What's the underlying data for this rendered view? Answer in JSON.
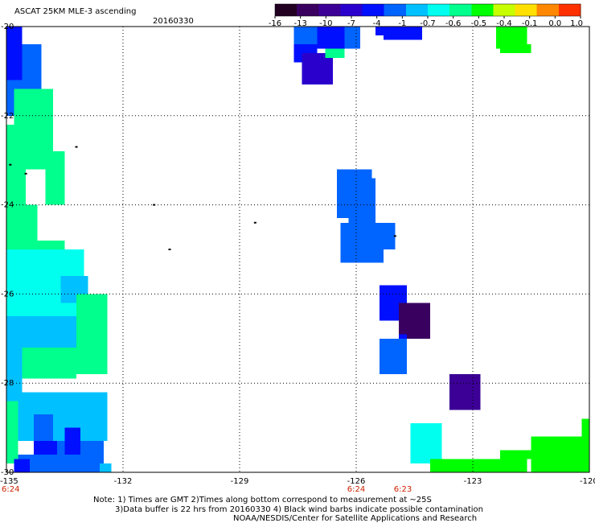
{
  "chart_data": {
    "type": "heatmap",
    "title": "ASCAT 25KM MLE-3 ascending",
    "date": "20160330",
    "xlim": [
      -135,
      -120
    ],
    "ylim": [
      -30,
      -20
    ],
    "x_tick_labels": [
      "-135",
      "-132",
      "-129",
      "-126",
      "-123",
      "-120"
    ],
    "y_tick_labels": [
      "-20",
      "-22",
      "-24",
      "-26",
      "-28",
      "-30"
    ],
    "time_labels": [
      {
        "lon": -135,
        "text": "6:24"
      },
      {
        "lon": -126,
        "text": "6:24"
      },
      {
        "lon": -124.8,
        "text": "6:23"
      }
    ],
    "colorbar": {
      "labels": [
        "-16",
        "-13",
        "-10",
        "-7",
        "-4",
        "-1",
        "-0.7",
        "-0.6",
        "-0.5",
        "-0.4",
        "-0.1",
        "0.0",
        "1.0"
      ],
      "colors": [
        "#220022",
        "#3a0060",
        "#3c0096",
        "#2a00cc",
        "#0010ff",
        "#0064ff",
        "#00c0ff",
        "#00ffee",
        "#00ff8c",
        "#00ff00",
        "#c8ff00",
        "#ffe000",
        "#ff8800",
        "#ff3000"
      ]
    },
    "grid": true,
    "cells": [
      {
        "lon0": -135,
        "lon1": -134.6,
        "lat0": -21.2,
        "lat1": -20,
        "level": 4
      },
      {
        "lon0": -134.6,
        "lon1": -134.1,
        "lat0": -21.0,
        "lat1": -20.4,
        "level": 5
      },
      {
        "lon0": -134.6,
        "lon1": -134.1,
        "lat0": -21.2,
        "lat1": -21.0,
        "level": 5
      },
      {
        "lon0": -135,
        "lon1": -134.6,
        "lat0": -22.0,
        "lat1": -21.2,
        "level": 5
      },
      {
        "lon0": -134.6,
        "lon1": -134.1,
        "lat0": -22.0,
        "lat1": -21.2,
        "level": 5
      },
      {
        "lon0": -134.8,
        "lon1": -133.8,
        "lat0": -22.2,
        "lat1": -21.4,
        "level": 8
      },
      {
        "lon0": -135,
        "lon1": -133.8,
        "lat0": -23.2,
        "lat1": -22.2,
        "level": 8
      },
      {
        "lon0": -135,
        "lon1": -134.5,
        "lat0": -24.0,
        "lat1": -23.2,
        "level": 8
      },
      {
        "lon0": -134.0,
        "lon1": -133.5,
        "lat0": -24.0,
        "lat1": -22.8,
        "level": 8
      },
      {
        "lon0": -135,
        "lon1": -134.2,
        "lat0": -25.0,
        "lat1": -24.0,
        "level": 8
      },
      {
        "lon0": -134.2,
        "lon1": -133.5,
        "lat0": -25.6,
        "lat1": -24.8,
        "level": 8
      },
      {
        "lon0": -135,
        "lon1": -133.0,
        "lat0": -26.5,
        "lat1": -25.0,
        "level": 7
      },
      {
        "lon0": -133.6,
        "lon1": -132.9,
        "lat0": -26.2,
        "lat1": -25.6,
        "level": 6
      },
      {
        "lon0": -135,
        "lon1": -133.2,
        "lat0": -27.2,
        "lat1": -26.5,
        "level": 6
      },
      {
        "lon0": -133.2,
        "lon1": -132.4,
        "lat0": -27.8,
        "lat1": -26.0,
        "level": 8
      },
      {
        "lon0": -134.6,
        "lon1": -133.2,
        "lat0": -27.9,
        "lat1": -27.2,
        "level": 8
      },
      {
        "lon0": -135,
        "lon1": -134.6,
        "lat0": -28.2,
        "lat1": -27.0,
        "level": 6
      },
      {
        "lon0": -135,
        "lon1": -132.4,
        "lat0": -28.7,
        "lat1": -28.2,
        "level": 6
      },
      {
        "lon0": -135,
        "lon1": -134.3,
        "lat0": -29.3,
        "lat1": -28.7,
        "level": 6
      },
      {
        "lon0": -134.3,
        "lon1": -133.8,
        "lat0": -29.4,
        "lat1": -28.7,
        "level": 5
      },
      {
        "lon0": -133.8,
        "lon1": -132.4,
        "lat0": -29.3,
        "lat1": -28.5,
        "level": 6
      },
      {
        "lon0": -135,
        "lon1": -134.7,
        "lat0": -29.8,
        "lat1": -28.4,
        "level": 8
      },
      {
        "lon0": -134.3,
        "lon1": -133.7,
        "lat0": -29.6,
        "lat1": -29.3,
        "level": 4
      },
      {
        "lon0": -133.7,
        "lon1": -132.5,
        "lat0": -30.0,
        "lat1": -29.3,
        "level": 5
      },
      {
        "lon0": -134.7,
        "lon1": -133.7,
        "lat0": -30.0,
        "lat1": -29.6,
        "level": 5
      },
      {
        "lon0": -133.5,
        "lon1": -133.1,
        "lat0": -29.6,
        "lat1": -29.0,
        "level": 4
      },
      {
        "lon0": -134.8,
        "lon1": -134.4,
        "lat0": -30.0,
        "lat1": -29.7,
        "level": 4
      },
      {
        "lon0": -132.6,
        "lon1": -132.3,
        "lat0": -30.0,
        "lat1": -29.8,
        "level": 6
      },
      {
        "lon0": -127.6,
        "lon1": -126.3,
        "lat0": -20.4,
        "lat1": -20.0,
        "level": 5
      },
      {
        "lon0": -127.6,
        "lon1": -127.0,
        "lat0": -20.8,
        "lat1": -20.4,
        "level": 4
      },
      {
        "lon0": -127.0,
        "lon1": -126.3,
        "lat0": -20.5,
        "lat1": -20.0,
        "level": 4
      },
      {
        "lon0": -127.4,
        "lon1": -126.6,
        "lat0": -21.3,
        "lat1": -20.6,
        "level": 3
      },
      {
        "lon0": -126.8,
        "lon1": -126.3,
        "lat0": -20.7,
        "lat1": -20.5,
        "level": 8
      },
      {
        "lon0": -126.3,
        "lon1": -125.9,
        "lat0": -20.5,
        "lat1": -20.0,
        "level": 5
      },
      {
        "lon0": -125.5,
        "lon1": -124.3,
        "lat0": -20.2,
        "lat1": -20.0,
        "level": 4
      },
      {
        "lon0": -125.3,
        "lon1": -124.3,
        "lat0": -20.3,
        "lat1": -20.2,
        "level": 4
      },
      {
        "lon0": -122.4,
        "lon1": -121.6,
        "lat0": -20.5,
        "lat1": -20.0,
        "level": 9
      },
      {
        "lon0": -122.3,
        "lon1": -121.5,
        "lat0": -20.6,
        "lat1": -20.4,
        "level": 9
      },
      {
        "lon0": -126.5,
        "lon1": -125.6,
        "lat0": -24.3,
        "lat1": -23.2,
        "level": 5
      },
      {
        "lon0": -126.2,
        "lon1": -125.5,
        "lat0": -24.4,
        "lat1": -23.4,
        "level": 5
      },
      {
        "lon0": -126.4,
        "lon1": -125.3,
        "lat0": -25.3,
        "lat1": -24.4,
        "level": 5
      },
      {
        "lon0": -125.3,
        "lon1": -125.0,
        "lat0": -25.0,
        "lat1": -24.4,
        "level": 5
      },
      {
        "lon0": -125.4,
        "lon1": -124.7,
        "lat0": -26.6,
        "lat1": -25.8,
        "level": 4
      },
      {
        "lon0": -124.9,
        "lon1": -124.1,
        "lat0": -27.0,
        "lat1": -26.2,
        "level": 1
      },
      {
        "lon0": -125.4,
        "lon1": -124.7,
        "lat0": -27.8,
        "lat1": -27.0,
        "level": 5
      },
      {
        "lon0": -124.9,
        "lon1": -124.7,
        "lat0": -27.0,
        "lat1": -26.9,
        "level": 4
      },
      {
        "lon0": -123.6,
        "lon1": -122.8,
        "lat0": -28.6,
        "lat1": -27.8,
        "level": 2
      },
      {
        "lon0": -124.6,
        "lon1": -123.8,
        "lat0": -29.8,
        "lat1": -28.9,
        "level": 7
      },
      {
        "lon0": -124.1,
        "lon1": -121.6,
        "lat0": -30.0,
        "lat1": -29.7,
        "level": 9
      },
      {
        "lon0": -122.3,
        "lon1": -121.5,
        "lat0": -29.7,
        "lat1": -29.5,
        "level": 9
      },
      {
        "lon0": -121.5,
        "lon1": -120.2,
        "lat0": -30.0,
        "lat1": -29.2,
        "level": 9
      },
      {
        "lon0": -120.2,
        "lon1": -120.0,
        "lat0": -30.0,
        "lat1": -28.8,
        "level": 9
      }
    ],
    "contamination_marks": [
      {
        "lon": -133.2,
        "lat": -22.7
      },
      {
        "lon": -134.9,
        "lat": -23.1
      },
      {
        "lon": -134.5,
        "lat": -23.3
      },
      {
        "lon": -131.2,
        "lat": -24.0
      },
      {
        "lon": -128.6,
        "lat": -24.4
      },
      {
        "lon": -130.8,
        "lat": -25.0
      },
      {
        "lon": -125.0,
        "lat": -24.7
      }
    ]
  },
  "notes": {
    "line1": "Note: 1) Times are GMT 2)Times along bottom correspond to measurement at ~25S",
    "line2": "3)Data buffer is 22 hrs from 20160330 4) Black wind barbs indicate possible contamination",
    "line3": "NOAA/NESDIS/Center for Satellite Applications and Research"
  }
}
